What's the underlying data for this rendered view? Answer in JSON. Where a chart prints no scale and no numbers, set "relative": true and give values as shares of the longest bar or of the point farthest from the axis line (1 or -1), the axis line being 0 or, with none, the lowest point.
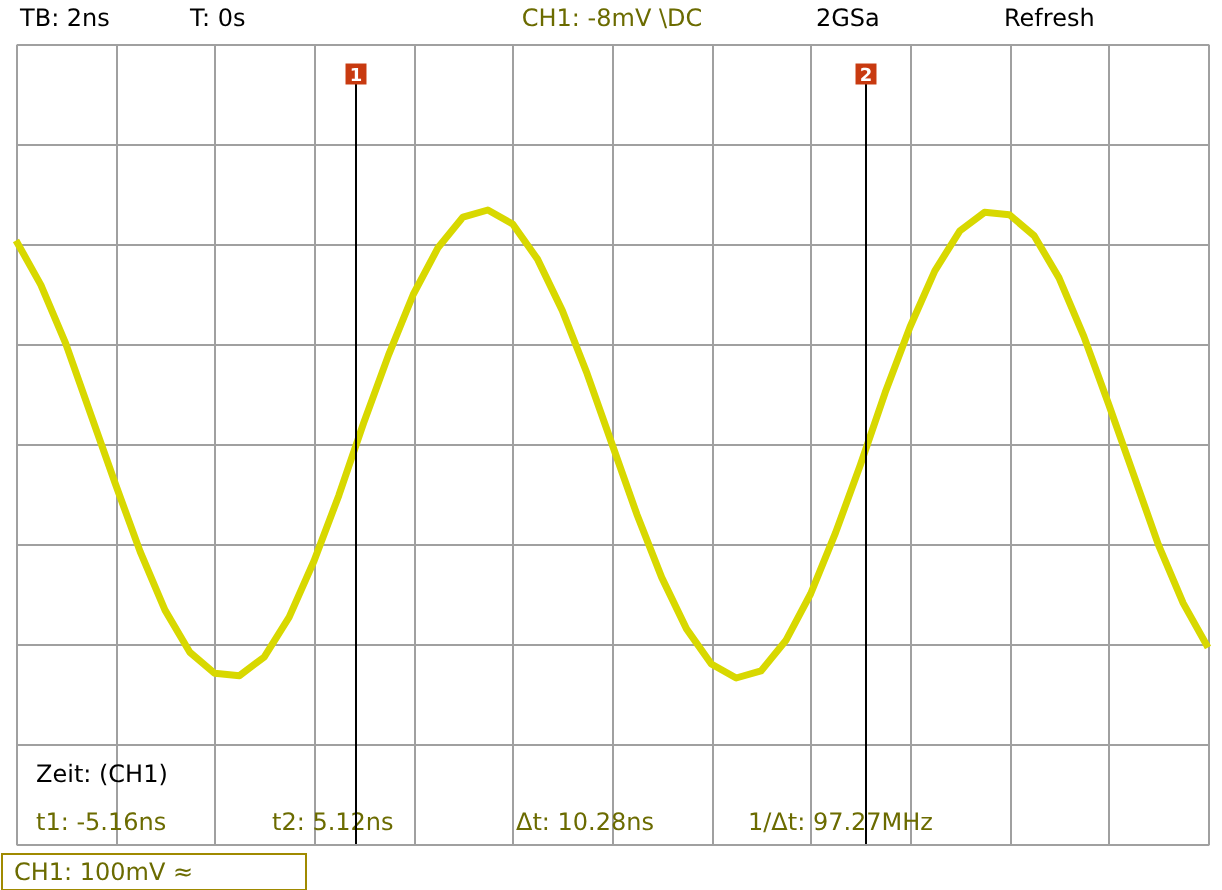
{
  "chart_data": {
    "type": "line",
    "relative": true,
    "categories": [
      null,
      null,
      null,
      null,
      null,
      null,
      null,
      null,
      null,
      null,
      null,
      null,
      null,
      null,
      null,
      null,
      null,
      null,
      null,
      null,
      null,
      null,
      null,
      null,
      null,
      null,
      null,
      null,
      null,
      null,
      null,
      null,
      null,
      null,
      null,
      null,
      null,
      null,
      null,
      null,
      null,
      null,
      null,
      null,
      null,
      null,
      null,
      null,
      null
    ],
    "series": [
      {
        "color": "#d8d800",
        "values": [
          0.87,
          0.68,
          0.43,
          0.13,
          -0.17,
          -0.46,
          -0.71,
          -0.89,
          -0.98,
          -0.99,
          -0.91,
          -0.74,
          -0.5,
          -0.22,
          0.09,
          0.38,
          0.64,
          0.84,
          0.97,
          1.0,
          0.94,
          0.79,
          0.57,
          0.3,
          0,
          -0.3,
          -0.57,
          -0.79,
          -0.94,
          -1.0,
          -0.97,
          -0.84,
          -0.64,
          -0.38,
          -0.09,
          0.22,
          0.5,
          0.74,
          0.91,
          0.99,
          0.98,
          0.89,
          0.71,
          0.46,
          0.17,
          -0.13,
          -0.43,
          -0.68,
          -0.87
        ]
      }
    ],
    "tick_labels": false,
    "grid": true,
    "marker": "none",
    "line_style": "solid",
    "annotations": [
      "TB: 2ns",
      "T: 0s",
      "CH1: -8mV \\DC",
      "2GSa",
      "Refresh",
      "Zeit: (CH1)",
      "t1: -5.16ns",
      "t2: 5.12ns",
      "Δt: 10.28ns",
      "1/Δt: 97.27MHz",
      "CH1: 100mV ≈",
      "1",
      "2"
    ]
  }
}
